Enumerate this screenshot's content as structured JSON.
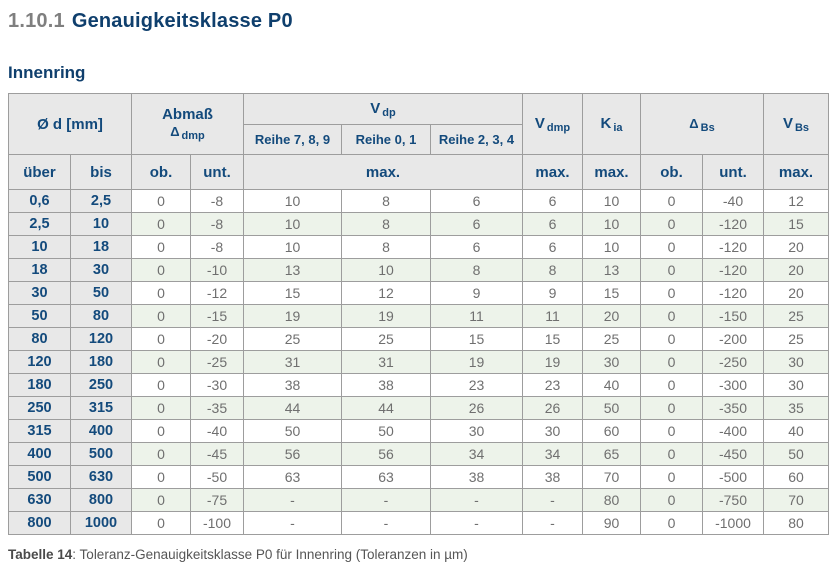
{
  "page": {
    "section_number": "1.10.1",
    "section_title": "Genauigkeitsklasse P0",
    "subtitle": "Innenring",
    "caption_label": "Tabelle 14",
    "caption_rest": ": Toleranz-Genauigkeitsklasse P0 für Innenring (Toleranzen in µm)"
  },
  "colors": {
    "accent_blue": "#134a7c",
    "title_gray": "#7f7f7f",
    "header_background": "#e8e8e8",
    "alt_row_green": "#edf3ea",
    "data_text_gray": "#6f6f6f",
    "grid_border": "#9d9d9d"
  },
  "table": {
    "header": {
      "diameter": "Ø d  [mm]",
      "abmass_line1": "Abmaß",
      "abmass_symbol": "Δ",
      "abmass_sub": "dmp",
      "vdp_main": "V",
      "vdp_sub": "dp",
      "reihe_789": "Reihe 7, 8, 9",
      "reihe_01": "Reihe 0, 1",
      "reihe_234": "Reihe 2, 3, 4",
      "vdmp_main": "V",
      "vdmp_sub": "dmp",
      "kia_main": "K",
      "kia_sub": "ia",
      "dbs_main": "Δ",
      "dbs_sub": "Bs",
      "vbs_main": "V",
      "vbs_sub": "Bs",
      "ueber": "über",
      "bis": "bis",
      "ob": "ob.",
      "unt": "unt.",
      "max": "max."
    },
    "columns": [
      "ueber",
      "bis",
      "ob-dmp",
      "unt-dmp",
      "vdp-reihe789",
      "vdp-reihe01",
      "vdp-reihe234",
      "vdmp-max",
      "kia-max",
      "ob-bs",
      "unt-bs",
      "vbs-max"
    ],
    "rows": [
      [
        "0,6",
        "2,5",
        "0",
        "-8",
        "10",
        "8",
        "6",
        "6",
        "10",
        "0",
        "-40",
        "12"
      ],
      [
        "2,5",
        "10",
        "0",
        "-8",
        "10",
        "8",
        "6",
        "6",
        "10",
        "0",
        "-120",
        "15"
      ],
      [
        "10",
        "18",
        "0",
        "-8",
        "10",
        "8",
        "6",
        "6",
        "10",
        "0",
        "-120",
        "20"
      ],
      [
        "18",
        "30",
        "0",
        "-10",
        "13",
        "10",
        "8",
        "8",
        "13",
        "0",
        "-120",
        "20"
      ],
      [
        "30",
        "50",
        "0",
        "-12",
        "15",
        "12",
        "9",
        "9",
        "15",
        "0",
        "-120",
        "20"
      ],
      [
        "50",
        "80",
        "0",
        "-15",
        "19",
        "19",
        "11",
        "11",
        "20",
        "0",
        "-150",
        "25"
      ],
      [
        "80",
        "120",
        "0",
        "-20",
        "25",
        "25",
        "15",
        "15",
        "25",
        "0",
        "-200",
        "25"
      ],
      [
        "120",
        "180",
        "0",
        "-25",
        "31",
        "31",
        "19",
        "19",
        "30",
        "0",
        "-250",
        "30"
      ],
      [
        "180",
        "250",
        "0",
        "-30",
        "38",
        "38",
        "23",
        "23",
        "40",
        "0",
        "-300",
        "30"
      ],
      [
        "250",
        "315",
        "0",
        "-35",
        "44",
        "44",
        "26",
        "26",
        "50",
        "0",
        "-350",
        "35"
      ],
      [
        "315",
        "400",
        "0",
        "-40",
        "50",
        "50",
        "30",
        "30",
        "60",
        "0",
        "-400",
        "40"
      ],
      [
        "400",
        "500",
        "0",
        "-45",
        "56",
        "56",
        "34",
        "34",
        "65",
        "0",
        "-450",
        "50"
      ],
      [
        "500",
        "630",
        "0",
        "-50",
        "63",
        "63",
        "38",
        "38",
        "70",
        "0",
        "-500",
        "60"
      ],
      [
        "630",
        "800",
        "0",
        "-75",
        "-",
        "-",
        "-",
        "-",
        "80",
        "0",
        "-750",
        "70"
      ],
      [
        "800",
        "1000",
        "0",
        "-100",
        "-",
        "-",
        "-",
        "-",
        "90",
        "0",
        "-1000",
        "80"
      ]
    ]
  }
}
